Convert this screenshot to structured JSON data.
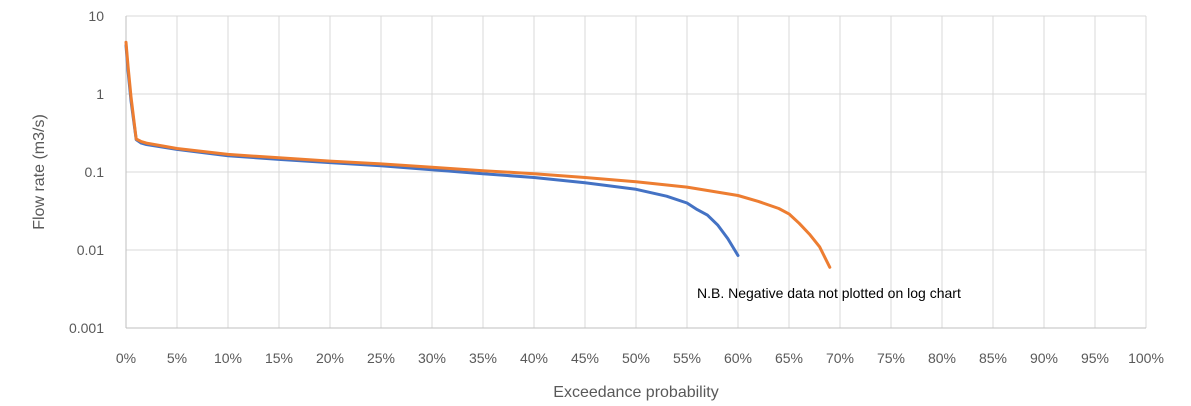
{
  "chart_data": {
    "type": "line",
    "xlabel": "Exceedance probability",
    "ylabel": "Flow rate (m3/s)",
    "y_scale": "log",
    "ylim": [
      0.001,
      10
    ],
    "xlim": [
      0,
      1
    ],
    "x_tick_labels": [
      "0%",
      "5%",
      "10%",
      "15%",
      "20%",
      "25%",
      "30%",
      "35%",
      "40%",
      "45%",
      "50%",
      "55%",
      "60%",
      "65%",
      "70%",
      "75%",
      "80%",
      "85%",
      "90%",
      "95%",
      "100%"
    ],
    "y_tick_labels": [
      "0.001",
      "0.01",
      "0.1",
      "1",
      "10"
    ],
    "grid": true,
    "legend": "none",
    "annotation": "N.B. Negative data not plotted on log chart",
    "series": [
      {
        "color": "#4472c4",
        "x": [
          0.0,
          0.002,
          0.005,
          0.01,
          0.015,
          0.02,
          0.05,
          0.1,
          0.15,
          0.2,
          0.25,
          0.3,
          0.35,
          0.4,
          0.45,
          0.5,
          0.53,
          0.55,
          0.56,
          0.57,
          0.58,
          0.59,
          0.6
        ],
        "y": [
          4.2,
          2.0,
          0.8,
          0.26,
          0.235,
          0.225,
          0.195,
          0.162,
          0.145,
          0.132,
          0.12,
          0.107,
          0.095,
          0.085,
          0.073,
          0.06,
          0.049,
          0.04,
          0.033,
          0.028,
          0.021,
          0.014,
          0.0085
        ]
      },
      {
        "color": "#ed7d31",
        "x": [
          0.0,
          0.002,
          0.005,
          0.01,
          0.015,
          0.02,
          0.05,
          0.1,
          0.15,
          0.2,
          0.25,
          0.3,
          0.35,
          0.4,
          0.45,
          0.5,
          0.55,
          0.6,
          0.62,
          0.64,
          0.65,
          0.66,
          0.67,
          0.68,
          0.69
        ],
        "y": [
          4.6,
          2.3,
          0.9,
          0.265,
          0.245,
          0.235,
          0.2,
          0.168,
          0.152,
          0.138,
          0.127,
          0.115,
          0.104,
          0.095,
          0.085,
          0.075,
          0.064,
          0.05,
          0.042,
          0.034,
          0.029,
          0.022,
          0.016,
          0.011,
          0.006
        ]
      }
    ]
  }
}
